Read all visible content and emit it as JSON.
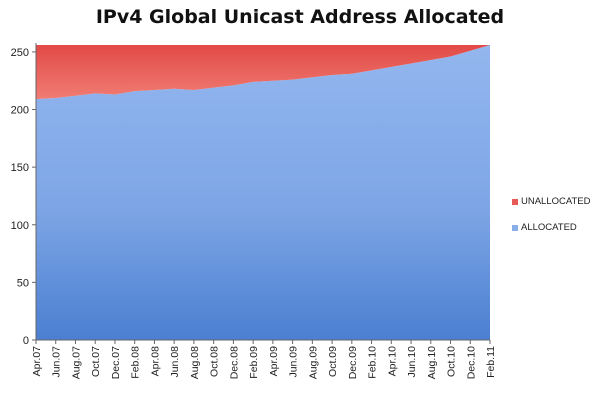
{
  "chart_data": {
    "type": "area",
    "stacked": true,
    "title": "IPv4 Global Unicast Address Allocated",
    "xlabel": "",
    "ylabel": "",
    "ylim": [
      0,
      256
    ],
    "yticks": [
      0,
      50,
      100,
      150,
      200,
      250
    ],
    "categories": [
      "Apr.07",
      "Jun.07",
      "Aug.07",
      "Oct.07",
      "Dec.07",
      "Feb.08",
      "Apr.08",
      "Jun.08",
      "Aug.08",
      "Oct.08",
      "Dec.08",
      "Feb.09",
      "Apr.09",
      "Jun.09",
      "Aug.09",
      "Oct.09",
      "Dec.09",
      "Feb.10",
      "Apr.10",
      "Jun.10",
      "Aug.10",
      "Oct.10",
      "Dec.10",
      "Feb.11"
    ],
    "series": [
      {
        "name": "ALLOCATED",
        "color": "#8aaee8",
        "values": [
          209,
          210,
          212,
          214,
          213,
          216,
          217,
          218,
          217,
          219,
          221,
          224,
          225,
          226,
          228,
          230,
          231,
          234,
          237,
          240,
          243,
          246,
          251,
          256
        ]
      },
      {
        "name": "UNALLOCATED",
        "color": "#e85a55",
        "values": [
          47,
          46,
          44,
          42,
          43,
          40,
          39,
          38,
          39,
          37,
          35,
          32,
          31,
          30,
          28,
          26,
          25,
          22,
          19,
          16,
          13,
          10,
          5,
          0
        ]
      }
    ],
    "legend": {
      "placement": "right",
      "entries": [
        "UNALLOCATED",
        "ALLOCATED"
      ]
    },
    "grid": false
  }
}
